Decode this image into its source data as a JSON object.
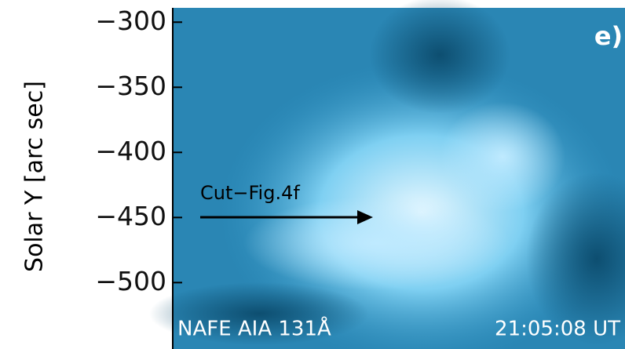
{
  "chart_data": {
    "type": "image",
    "ylabel": "Solar Y [arc sec]",
    "ylim": [
      -551,
      -289
    ],
    "yticks": [
      {
        "value": -300,
        "label": "−300"
      },
      {
        "value": -350,
        "label": "−350"
      },
      {
        "value": -400,
        "label": "−400"
      },
      {
        "value": -450,
        "label": "−450"
      },
      {
        "value": -500,
        "label": "−500"
      }
    ],
    "panel_label": "e)",
    "annotation": "Cut−Fig.4f",
    "instrument": "NAFE AIA 131Å",
    "time": "21:05:08 UT"
  }
}
